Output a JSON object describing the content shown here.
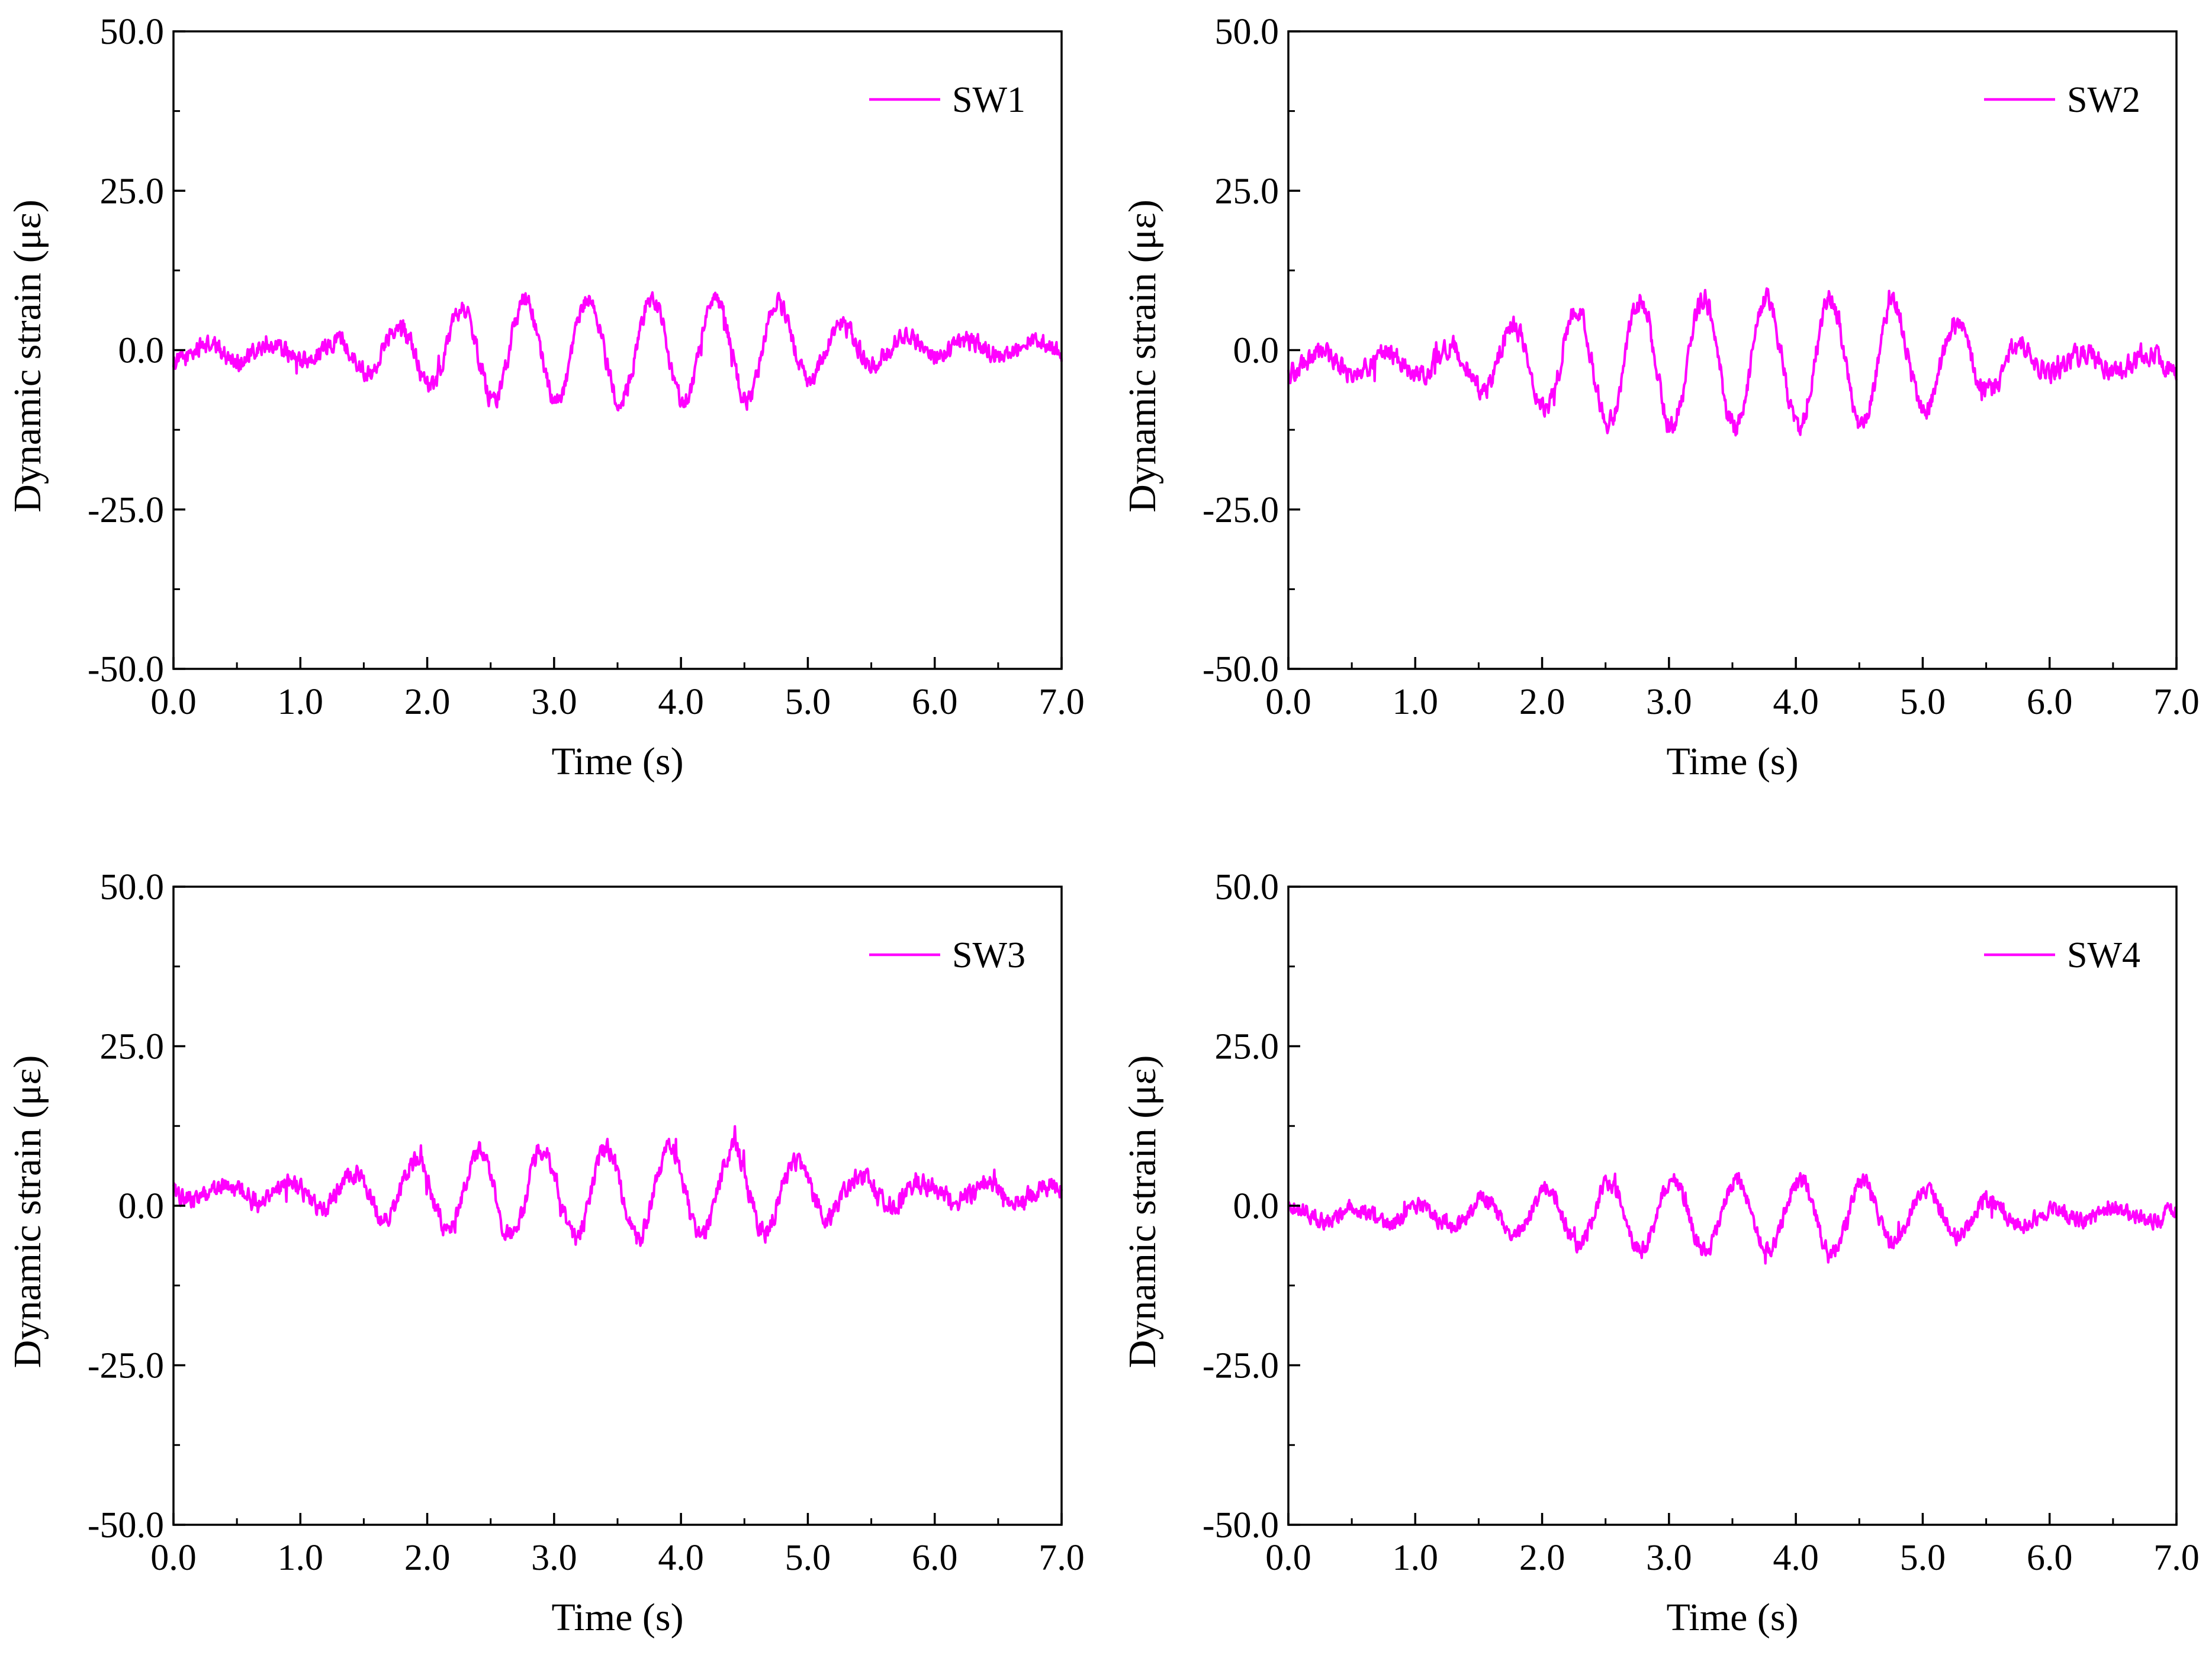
{
  "figure": {
    "line_color": "#ff00ff"
  },
  "chart_data": [
    {
      "type": "line",
      "series": [
        {
          "name": "SW1",
          "amplitude_envelope": [
            [
              0,
              1.2
            ],
            [
              1.2,
              1.5
            ],
            [
              1.5,
              3
            ],
            [
              1.9,
              5
            ],
            [
              2.3,
              7
            ],
            [
              2.6,
              8
            ],
            [
              4.7,
              8
            ],
            [
              5.0,
              5
            ],
            [
              5.3,
              3.5
            ],
            [
              5.6,
              2.5
            ],
            [
              6.0,
              1.2
            ],
            [
              7.0,
              1.2
            ]
          ],
          "peaks": [
            [
              1.65,
              3.5
            ],
            [
              2.15,
              5.5
            ],
            [
              2.65,
              7.5
            ],
            [
              3.15,
              8
            ],
            [
              3.65,
              7
            ],
            [
              4.15,
              7.5
            ],
            [
              4.65,
              8.5
            ],
            [
              5.2,
              6
            ],
            [
              5.6,
              3.5
            ]
          ],
          "troughs": [
            [
              1.9,
              -5.5
            ],
            [
              2.4,
              -7
            ],
            [
              2.9,
              -8
            ],
            [
              3.4,
              -6.5
            ],
            [
              3.9,
              -6
            ],
            [
              4.4,
              -6
            ],
            [
              4.9,
              -3.5
            ],
            [
              5.4,
              -2.5
            ],
            [
              5.9,
              -2
            ]
          ],
          "baseline": [
            [
              0,
              -0.5
            ],
            [
              7,
              0.5
            ]
          ],
          "frequency_hz": 2.0,
          "noise_level": 2.2
        }
      ],
      "xlabel": "Time (s)",
      "ylabel": "Dynamic strain (με)",
      "xlim": [
        0,
        7
      ],
      "ylim": [
        -50,
        50
      ],
      "x_ticks": [
        "0.0",
        "1.0",
        "2.0",
        "3.0",
        "4.0",
        "5.0",
        "6.0",
        "7.0"
      ],
      "y_ticks": [
        "50.0",
        "25.0",
        "0.0",
        "-25.0",
        "-50.0"
      ],
      "legend": {
        "label": "SW1",
        "position": "top-right"
      }
    },
    {
      "type": "line",
      "series": [
        {
          "name": "SW2",
          "amplitude_envelope": [
            [
              0,
              1.5
            ],
            [
              1.2,
              2
            ],
            [
              1.6,
              5
            ],
            [
              2.0,
              7
            ],
            [
              2.5,
              9
            ],
            [
              2.7,
              10
            ],
            [
              4.6,
              10
            ],
            [
              5.0,
              8
            ],
            [
              5.3,
              6
            ],
            [
              5.7,
              3.5
            ],
            [
              6.0,
              1.5
            ],
            [
              7.0,
              1.5
            ]
          ],
          "peaks": [
            [
              1.15,
              1
            ],
            [
              1.65,
              5
            ],
            [
              2.15,
              7
            ],
            [
              2.65,
              11
            ],
            [
              3.15,
              10.5
            ],
            [
              3.65,
              11.5
            ],
            [
              4.15,
              10
            ],
            [
              4.65,
              9.5
            ],
            [
              5.15,
              7
            ],
            [
              5.65,
              4
            ]
          ],
          "troughs": [
            [
              1.4,
              -5
            ],
            [
              1.9,
              -7.5
            ],
            [
              2.4,
              -10
            ],
            [
              2.9,
              -9
            ],
            [
              3.4,
              -11
            ],
            [
              3.9,
              -8
            ],
            [
              4.4,
              -9
            ],
            [
              4.9,
              -6
            ],
            [
              5.4,
              -5
            ],
            [
              5.9,
              -4
            ]
          ],
          "baseline": [
            [
              0,
              -2
            ],
            [
              7,
              -2
            ]
          ],
          "frequency_hz": 2.0,
          "noise_level": 2.5
        }
      ],
      "xlabel": "Time (s)",
      "ylabel": "Dynamic strain (με)",
      "xlim": [
        0,
        7
      ],
      "ylim": [
        -50,
        50
      ],
      "x_ticks": [
        "0.0",
        "1.0",
        "2.0",
        "3.0",
        "4.0",
        "5.0",
        "6.0",
        "7.0"
      ],
      "y_ticks": [
        "50.0",
        "25.0",
        "0.0",
        "-25.0",
        "-50.0"
      ],
      "legend": {
        "label": "SW2",
        "position": "top-right"
      }
    },
    {
      "type": "line",
      "series": [
        {
          "name": "SW3",
          "amplitude_envelope": [
            [
              0,
              1.2
            ],
            [
              0.9,
              1.5
            ],
            [
              1.4,
              3
            ],
            [
              1.9,
              5
            ],
            [
              2.4,
              6.5
            ],
            [
              2.8,
              7
            ],
            [
              4.5,
              7
            ],
            [
              4.9,
              5
            ],
            [
              5.2,
              3.5
            ],
            [
              5.6,
              2
            ],
            [
              6.0,
              1.2
            ],
            [
              7.0,
              1.2
            ]
          ],
          "peaks": [
            [
              0.9,
              4
            ],
            [
              1.4,
              5.5
            ],
            [
              1.9,
              7
            ],
            [
              2.4,
              9
            ],
            [
              2.9,
              10
            ],
            [
              3.4,
              10.5
            ],
            [
              3.9,
              9.5
            ],
            [
              4.4,
              10
            ],
            [
              4.9,
              7.5
            ],
            [
              5.4,
              4
            ]
          ],
          "troughs": [
            [
              1.65,
              -2.5
            ],
            [
              2.15,
              -3.5
            ],
            [
              2.65,
              -4.5
            ],
            [
              3.15,
              -4
            ],
            [
              3.65,
              -4
            ],
            [
              4.15,
              -3.5
            ],
            [
              4.7,
              -6
            ],
            [
              5.2,
              -2
            ],
            [
              5.6,
              -0.5
            ]
          ],
          "baseline": [
            [
              0,
              2
            ],
            [
              7,
              2
            ]
          ],
          "frequency_hz": 2.0,
          "noise_level": 2.3
        }
      ],
      "xlabel": "Time (s)",
      "ylabel": "Dynamic strain (με)",
      "xlim": [
        0,
        7
      ],
      "ylim": [
        -50,
        50
      ],
      "x_ticks": [
        "0.0",
        "1.0",
        "2.0",
        "3.0",
        "4.0",
        "5.0",
        "6.0",
        "7.0"
      ],
      "y_ticks": [
        "50.0",
        "25.0",
        "0.0",
        "-25.0",
        "-50.0"
      ],
      "legend": {
        "label": "SW3",
        "position": "top-right"
      }
    },
    {
      "type": "line",
      "series": [
        {
          "name": "SW4",
          "amplitude_envelope": [
            [
              0,
              1
            ],
            [
              1.3,
              1.5
            ],
            [
              1.6,
              3
            ],
            [
              2.0,
              4
            ],
            [
              2.4,
              5
            ],
            [
              2.9,
              5.5
            ],
            [
              4.4,
              5.5
            ],
            [
              4.8,
              4.5
            ],
            [
              5.2,
              3.5
            ],
            [
              5.6,
              2
            ],
            [
              6.0,
              1
            ],
            [
              7.0,
              1
            ]
          ],
          "peaks": [
            [
              1.45,
              2.5
            ],
            [
              1.9,
              4
            ],
            [
              2.4,
              5
            ],
            [
              2.9,
              5.5
            ],
            [
              3.4,
              5.5
            ],
            [
              3.9,
              4.5
            ],
            [
              4.4,
              6
            ],
            [
              4.9,
              3.5
            ],
            [
              5.35,
              3.5
            ],
            [
              5.8,
              2
            ]
          ],
          "troughs": [
            [
              1.7,
              -5
            ],
            [
              2.15,
              -6
            ],
            [
              2.65,
              -6.5
            ],
            [
              3.15,
              -7.5
            ],
            [
              3.65,
              -6.5
            ],
            [
              4.15,
              -7
            ],
            [
              4.65,
              -6
            ],
            [
              5.15,
              -5
            ],
            [
              5.65,
              -3.5
            ]
          ],
          "baseline": [
            [
              0,
              -1.5
            ],
            [
              7,
              -1.5
            ]
          ],
          "frequency_hz": 2.0,
          "noise_level": 2.0
        }
      ],
      "xlabel": "Time (s)",
      "ylabel": "Dynamic strain (με)",
      "xlim": [
        0,
        7
      ],
      "ylim": [
        -50,
        50
      ],
      "x_ticks": [
        "0.0",
        "1.0",
        "2.0",
        "3.0",
        "4.0",
        "5.0",
        "6.0",
        "7.0"
      ],
      "y_ticks": [
        "50.0",
        "25.0",
        "0.0",
        "-25.0",
        "-50.0"
      ],
      "legend": {
        "label": "SW4",
        "position": "top-right"
      }
    }
  ]
}
